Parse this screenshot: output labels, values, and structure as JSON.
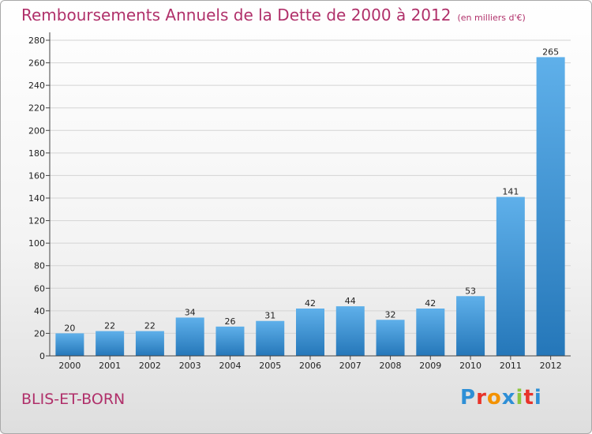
{
  "title": "Remboursements Annuels de la Dette de 2000 à 2012",
  "unit_note": "(en milliers d'€)",
  "commune": "BLIS-ET-BORN",
  "brand": {
    "letters": [
      "P",
      "r",
      "o",
      "x",
      "i",
      "t",
      "i"
    ],
    "colors": [
      "#2e8fd6",
      "#e8332a",
      "#f39200",
      "#2e8fd6",
      "#8dc63f",
      "#e8332a",
      "#2e8fd6"
    ]
  },
  "colors": {
    "bar_top": "#5fb0ea",
    "bar_bottom": "#2577b9",
    "title": "#b0306a"
  },
  "chart_data": {
    "type": "bar",
    "categories": [
      "2000",
      "2001",
      "2002",
      "2003",
      "2004",
      "2005",
      "2006",
      "2007",
      "2008",
      "2009",
      "2010",
      "2011",
      "2012"
    ],
    "values": [
      20,
      22,
      22,
      34,
      26,
      31,
      42,
      44,
      32,
      42,
      53,
      141,
      265
    ],
    "ylim": [
      0,
      280
    ],
    "yticks": [
      0,
      20,
      40,
      60,
      80,
      100,
      120,
      140,
      160,
      180,
      200,
      220,
      240,
      260,
      280
    ],
    "grid": true,
    "legend": "none"
  }
}
